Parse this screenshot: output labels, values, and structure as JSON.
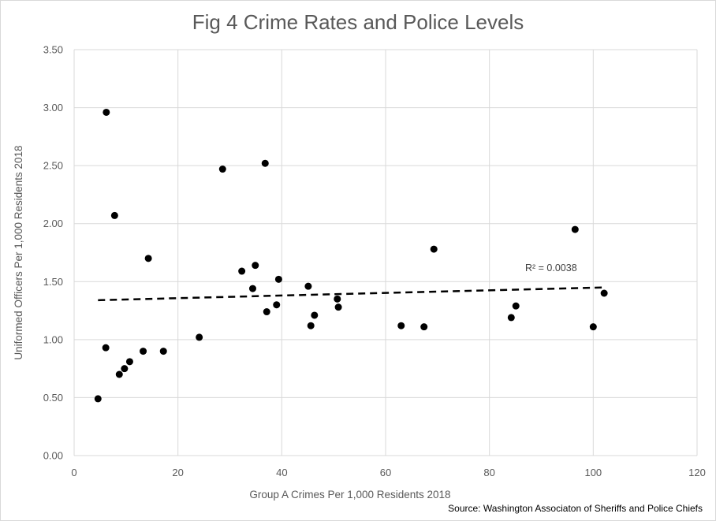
{
  "chart_data": {
    "type": "scatter",
    "title": "Fig 4 Crime Rates and Police Levels",
    "xlabel": "Group A Crimes Per 1,000 Residents 2018",
    "ylabel": "Uniformed Officers Per 1,000 Residents 2018",
    "xlim": [
      0,
      120
    ],
    "ylim": [
      0,
      3.5
    ],
    "x_ticks": [
      "0",
      "20",
      "40",
      "60",
      "80",
      "100",
      "120"
    ],
    "y_ticks": [
      "0.00",
      "0.50",
      "1.00",
      "1.50",
      "2.00",
      "2.50",
      "3.00",
      "3.50"
    ],
    "grid": true,
    "marker_color": "#000000",
    "points": [
      {
        "x": 4.6,
        "y": 0.49
      },
      {
        "x": 6.2,
        "y": 2.96
      },
      {
        "x": 6.1,
        "y": 0.93
      },
      {
        "x": 7.8,
        "y": 2.07
      },
      {
        "x": 8.7,
        "y": 0.7
      },
      {
        "x": 9.7,
        "y": 0.75
      },
      {
        "x": 10.7,
        "y": 0.81
      },
      {
        "x": 13.3,
        "y": 0.9
      },
      {
        "x": 14.3,
        "y": 1.7
      },
      {
        "x": 17.2,
        "y": 0.9
      },
      {
        "x": 24.1,
        "y": 1.02
      },
      {
        "x": 28.6,
        "y": 2.47
      },
      {
        "x": 32.3,
        "y": 1.59
      },
      {
        "x": 34.4,
        "y": 1.44
      },
      {
        "x": 34.9,
        "y": 1.64
      },
      {
        "x": 36.8,
        "y": 2.52
      },
      {
        "x": 37.1,
        "y": 1.24
      },
      {
        "x": 39.0,
        "y": 1.3
      },
      {
        "x": 39.4,
        "y": 1.52
      },
      {
        "x": 45.1,
        "y": 1.46
      },
      {
        "x": 45.6,
        "y": 1.12
      },
      {
        "x": 46.3,
        "y": 1.21
      },
      {
        "x": 50.7,
        "y": 1.35
      },
      {
        "x": 50.9,
        "y": 1.28
      },
      {
        "x": 63.0,
        "y": 1.12
      },
      {
        "x": 67.4,
        "y": 1.11
      },
      {
        "x": 69.3,
        "y": 1.78
      },
      {
        "x": 84.2,
        "y": 1.19
      },
      {
        "x": 85.1,
        "y": 1.29
      },
      {
        "x": 96.5,
        "y": 1.95
      },
      {
        "x": 100.0,
        "y": 1.11
      },
      {
        "x": 102.1,
        "y": 1.4
      }
    ],
    "trendline": {
      "style": "dashed",
      "color": "#000000",
      "start": {
        "x": 4.6,
        "y": 1.34
      },
      "end": {
        "x": 102.1,
        "y": 1.45
      },
      "label": "R² = 0.0038"
    }
  },
  "source": "Source: Washington Associaton of Sheriffs and Police Chiefs"
}
